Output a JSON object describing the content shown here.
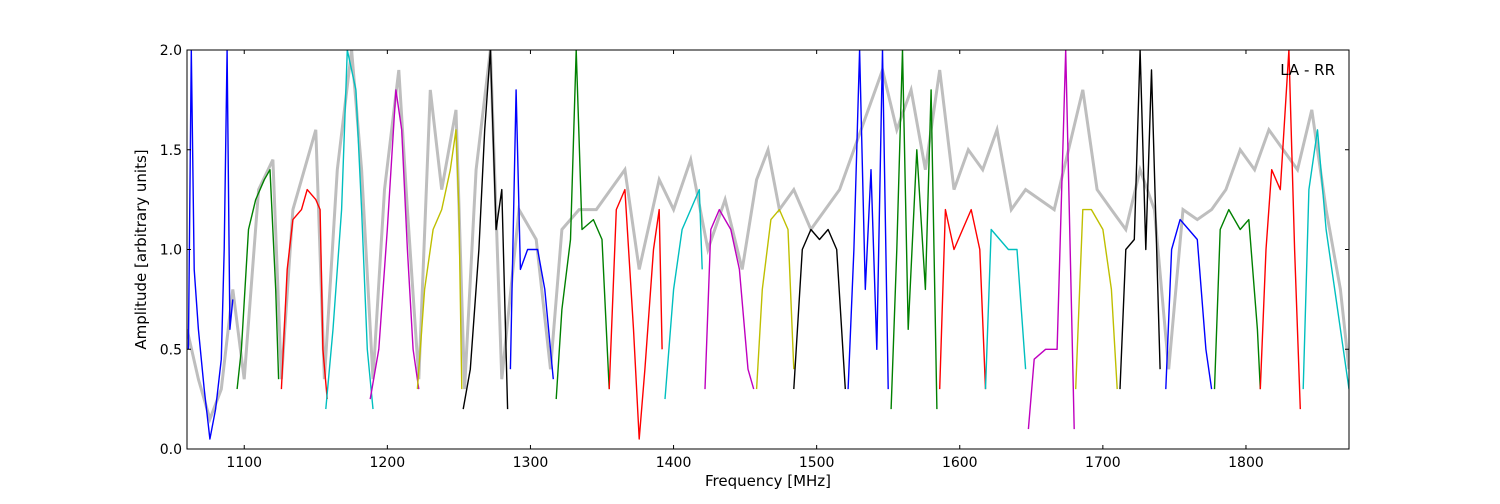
{
  "chart_data": {
    "type": "line",
    "title": "",
    "annotation": "LA - RR",
    "annotation_placement": "top-right",
    "xlabel": "Frequency [MHz]",
    "ylabel": "Amplitude [arbitrary units]",
    "xlim": [
      1060,
      1872
    ],
    "ylim": [
      0.0,
      2.0
    ],
    "xticks": [
      1100,
      1200,
      1300,
      1400,
      1500,
      1600,
      1700,
      1800
    ],
    "yticks": [
      0.0,
      0.5,
      1.0,
      1.5,
      2.0
    ],
    "xtick_labels": [
      "1100",
      "1200",
      "1300",
      "1400",
      "1500",
      "1600",
      "1700",
      "1800"
    ],
    "ytick_labels": [
      "0.0",
      "0.5",
      "1.0",
      "1.5",
      "2.0"
    ],
    "grid": false,
    "legend": "none",
    "background_series": {
      "color": "#bebebe",
      "points": [
        [
          1060,
          0.6
        ],
        [
          1068,
          0.35
        ],
        [
          1076,
          0.15
        ],
        [
          1084,
          0.3
        ],
        [
          1092,
          0.8
        ],
        [
          1100,
          0.35
        ],
        [
          1110,
          1.3
        ],
        [
          1120,
          1.45
        ],
        [
          1126,
          0.35
        ],
        [
          1134,
          1.2
        ],
        [
          1140,
          1.35
        ],
        [
          1150,
          1.6
        ],
        [
          1156,
          0.35
        ],
        [
          1165,
          1.4
        ],
        [
          1175,
          2.0
        ],
        [
          1182,
          1.4
        ],
        [
          1190,
          0.35
        ],
        [
          1198,
          1.3
        ],
        [
          1208,
          1.9
        ],
        [
          1214,
          1.2
        ],
        [
          1222,
          0.35
        ],
        [
          1230,
          1.8
        ],
        [
          1238,
          1.3
        ],
        [
          1248,
          1.7
        ],
        [
          1254,
          0.3
        ],
        [
          1262,
          1.4
        ],
        [
          1272,
          2.0
        ],
        [
          1280,
          0.35
        ],
        [
          1292,
          1.2
        ],
        [
          1304,
          1.05
        ],
        [
          1314,
          0.4
        ],
        [
          1322,
          1.1
        ],
        [
          1334,
          1.2
        ],
        [
          1346,
          1.2
        ],
        [
          1356,
          1.3
        ],
        [
          1366,
          1.4
        ],
        [
          1376,
          0.9
        ],
        [
          1390,
          1.35
        ],
        [
          1400,
          1.2
        ],
        [
          1412,
          1.45
        ],
        [
          1424,
          1.0
        ],
        [
          1436,
          1.25
        ],
        [
          1448,
          0.9
        ],
        [
          1458,
          1.35
        ],
        [
          1466,
          1.5
        ],
        [
          1474,
          1.2
        ],
        [
          1484,
          1.3
        ],
        [
          1496,
          1.1
        ],
        [
          1506,
          1.2
        ],
        [
          1516,
          1.3
        ],
        [
          1526,
          1.5
        ],
        [
          1536,
          1.7
        ],
        [
          1546,
          1.9
        ],
        [
          1556,
          1.6
        ],
        [
          1566,
          1.8
        ],
        [
          1576,
          1.4
        ],
        [
          1586,
          1.9
        ],
        [
          1596,
          1.3
        ],
        [
          1606,
          1.5
        ],
        [
          1616,
          1.4
        ],
        [
          1626,
          1.6
        ],
        [
          1636,
          1.2
        ],
        [
          1646,
          1.3
        ],
        [
          1656,
          1.25
        ],
        [
          1666,
          1.2
        ],
        [
          1676,
          1.5
        ],
        [
          1686,
          1.8
        ],
        [
          1696,
          1.3
        ],
        [
          1706,
          1.2
        ],
        [
          1716,
          1.1
        ],
        [
          1726,
          1.4
        ],
        [
          1736,
          1.2
        ],
        [
          1746,
          0.4
        ],
        [
          1756,
          1.2
        ],
        [
          1766,
          1.15
        ],
        [
          1776,
          1.2
        ],
        [
          1786,
          1.3
        ],
        [
          1796,
          1.5
        ],
        [
          1806,
          1.4
        ],
        [
          1816,
          1.6
        ],
        [
          1826,
          1.5
        ],
        [
          1836,
          1.4
        ],
        [
          1846,
          1.7
        ],
        [
          1856,
          1.2
        ],
        [
          1866,
          0.8
        ],
        [
          1872,
          0.4
        ]
      ]
    },
    "series": [
      {
        "color": "#0000ff",
        "points": [
          [
            1061,
            0.5
          ],
          [
            1063,
            2.0
          ],
          [
            1065,
            0.9
          ],
          [
            1068,
            0.6
          ],
          [
            1072,
            0.3
          ],
          [
            1076,
            0.05
          ],
          [
            1080,
            0.2
          ],
          [
            1084,
            0.45
          ],
          [
            1086,
            1.0
          ],
          [
            1088,
            2.0
          ],
          [
            1090,
            0.6
          ],
          [
            1092,
            0.75
          ]
        ]
      },
      {
        "color": "#008000",
        "points": [
          [
            1095,
            0.3
          ],
          [
            1098,
            0.5
          ],
          [
            1103,
            1.1
          ],
          [
            1108,
            1.25
          ],
          [
            1114,
            1.35
          ],
          [
            1118,
            1.4
          ],
          [
            1122,
            0.8
          ],
          [
            1124,
            0.35
          ]
        ]
      },
      {
        "color": "#ff0000",
        "points": [
          [
            1126,
            0.3
          ],
          [
            1130,
            0.9
          ],
          [
            1134,
            1.15
          ],
          [
            1140,
            1.2
          ],
          [
            1144,
            1.3
          ],
          [
            1150,
            1.25
          ],
          [
            1153,
            1.2
          ],
          [
            1155,
            0.5
          ],
          [
            1158,
            0.25
          ]
        ]
      },
      {
        "color": "#00bfbf",
        "points": [
          [
            1157,
            0.2
          ],
          [
            1162,
            0.6
          ],
          [
            1168,
            1.2
          ],
          [
            1172,
            2.0
          ],
          [
            1178,
            1.8
          ],
          [
            1182,
            1.2
          ],
          [
            1186,
            0.5
          ],
          [
            1190,
            0.2
          ]
        ]
      },
      {
        "color": "#bf00bf",
        "points": [
          [
            1188,
            0.25
          ],
          [
            1194,
            0.5
          ],
          [
            1200,
            1.1
          ],
          [
            1206,
            1.8
          ],
          [
            1210,
            1.6
          ],
          [
            1214,
            1.0
          ],
          [
            1218,
            0.5
          ],
          [
            1222,
            0.3
          ]
        ]
      },
      {
        "color": "#bfbf00",
        "points": [
          [
            1221,
            0.3
          ],
          [
            1226,
            0.8
          ],
          [
            1232,
            1.1
          ],
          [
            1238,
            1.2
          ],
          [
            1244,
            1.4
          ],
          [
            1248,
            1.6
          ],
          [
            1250,
            1.2
          ],
          [
            1252,
            0.3
          ]
        ]
      },
      {
        "color": "#000000",
        "points": [
          [
            1253,
            0.2
          ],
          [
            1258,
            0.4
          ],
          [
            1264,
            1.0
          ],
          [
            1268,
            1.6
          ],
          [
            1272,
            2.0
          ],
          [
            1276,
            1.1
          ],
          [
            1280,
            1.3
          ],
          [
            1284,
            0.2
          ]
        ]
      },
      {
        "color": "#0000ff",
        "points": [
          [
            1286,
            0.4
          ],
          [
            1290,
            1.8
          ],
          [
            1293,
            0.9
          ],
          [
            1298,
            1.0
          ],
          [
            1305,
            1.0
          ],
          [
            1310,
            0.8
          ],
          [
            1316,
            0.35
          ]
        ]
      },
      {
        "color": "#008000",
        "points": [
          [
            1318,
            0.25
          ],
          [
            1322,
            0.7
          ],
          [
            1328,
            1.05
          ],
          [
            1332,
            2.0
          ],
          [
            1336,
            1.1
          ],
          [
            1344,
            1.15
          ],
          [
            1350,
            1.05
          ],
          [
            1355,
            0.3
          ]
        ]
      },
      {
        "color": "#ff0000",
        "points": [
          [
            1355,
            0.3
          ],
          [
            1360,
            1.2
          ],
          [
            1366,
            1.3
          ],
          [
            1372,
            0.6
          ],
          [
            1376,
            0.05
          ],
          [
            1380,
            0.4
          ],
          [
            1386,
            1.0
          ],
          [
            1390,
            1.2
          ],
          [
            1392,
            0.5
          ]
        ]
      },
      {
        "color": "#00bfbf",
        "points": [
          [
            1394,
            0.25
          ],
          [
            1400,
            0.8
          ],
          [
            1406,
            1.1
          ],
          [
            1412,
            1.2
          ],
          [
            1418,
            1.3
          ],
          [
            1420,
            0.9
          ]
        ]
      },
      {
        "color": "#bf00bf",
        "points": [
          [
            1422,
            0.3
          ],
          [
            1426,
            1.1
          ],
          [
            1432,
            1.2
          ],
          [
            1440,
            1.1
          ],
          [
            1446,
            0.9
          ],
          [
            1452,
            0.4
          ],
          [
            1456,
            0.3
          ]
        ]
      },
      {
        "color": "#bfbf00",
        "points": [
          [
            1458,
            0.3
          ],
          [
            1462,
            0.8
          ],
          [
            1468,
            1.15
          ],
          [
            1474,
            1.2
          ],
          [
            1480,
            1.1
          ],
          [
            1484,
            0.4
          ]
        ]
      },
      {
        "color": "#000000",
        "points": [
          [
            1484,
            0.3
          ],
          [
            1490,
            1.0
          ],
          [
            1496,
            1.1
          ],
          [
            1502,
            1.05
          ],
          [
            1508,
            1.1
          ],
          [
            1514,
            1.0
          ],
          [
            1520,
            0.3
          ]
        ]
      },
      {
        "color": "#0000ff",
        "points": [
          [
            1522,
            0.3
          ],
          [
            1526,
            1.0
          ],
          [
            1530,
            2.0
          ],
          [
            1534,
            0.8
          ],
          [
            1538,
            1.4
          ],
          [
            1542,
            0.5
          ],
          [
            1546,
            2.0
          ],
          [
            1550,
            0.3
          ]
        ]
      },
      {
        "color": "#008000",
        "points": [
          [
            1552,
            0.2
          ],
          [
            1556,
            1.0
          ],
          [
            1560,
            2.0
          ],
          [
            1564,
            0.6
          ],
          [
            1570,
            1.5
          ],
          [
            1576,
            0.8
          ],
          [
            1580,
            1.8
          ],
          [
            1584,
            0.2
          ]
        ]
      },
      {
        "color": "#ff0000",
        "points": [
          [
            1586,
            0.3
          ],
          [
            1590,
            1.2
          ],
          [
            1596,
            1.0
          ],
          [
            1602,
            1.1
          ],
          [
            1608,
            1.2
          ],
          [
            1614,
            1.0
          ],
          [
            1618,
            0.3
          ]
        ]
      },
      {
        "color": "#00bfbf",
        "points": [
          [
            1618,
            0.3
          ],
          [
            1622,
            1.1
          ],
          [
            1628,
            1.05
          ],
          [
            1634,
            1.0
          ],
          [
            1640,
            1.0
          ],
          [
            1646,
            0.4
          ]
        ]
      },
      {
        "color": "#bf00bf",
        "points": [
          [
            1648,
            0.1
          ],
          [
            1652,
            0.45
          ],
          [
            1660,
            0.5
          ],
          [
            1668,
            0.5
          ],
          [
            1674,
            2.0
          ],
          [
            1680,
            0.1
          ]
        ]
      },
      {
        "color": "#bfbf00",
        "points": [
          [
            1681,
            0.3
          ],
          [
            1686,
            1.2
          ],
          [
            1692,
            1.2
          ],
          [
            1700,
            1.1
          ],
          [
            1706,
            0.8
          ],
          [
            1710,
            0.3
          ]
        ]
      },
      {
        "color": "#000000",
        "points": [
          [
            1712,
            0.3
          ],
          [
            1716,
            1.0
          ],
          [
            1722,
            1.05
          ],
          [
            1726,
            2.0
          ],
          [
            1730,
            1.0
          ],
          [
            1734,
            1.9
          ],
          [
            1740,
            0.4
          ]
        ]
      },
      {
        "color": "#0000ff",
        "points": [
          [
            1744,
            0.3
          ],
          [
            1748,
            1.0
          ],
          [
            1754,
            1.15
          ],
          [
            1760,
            1.1
          ],
          [
            1766,
            1.05
          ],
          [
            1772,
            0.5
          ],
          [
            1776,
            0.3
          ]
        ]
      },
      {
        "color": "#008000",
        "points": [
          [
            1778,
            0.3
          ],
          [
            1782,
            1.1
          ],
          [
            1788,
            1.2
          ],
          [
            1796,
            1.1
          ],
          [
            1802,
            1.15
          ],
          [
            1808,
            0.6
          ],
          [
            1810,
            0.3
          ]
        ]
      },
      {
        "color": "#ff0000",
        "points": [
          [
            1810,
            0.3
          ],
          [
            1814,
            1.0
          ],
          [
            1818,
            1.4
          ],
          [
            1824,
            1.3
          ],
          [
            1830,
            2.0
          ],
          [
            1834,
            1.0
          ],
          [
            1838,
            0.2
          ]
        ]
      },
      {
        "color": "#00bfbf",
        "points": [
          [
            1840,
            0.3
          ],
          [
            1844,
            1.3
          ],
          [
            1850,
            1.6
          ],
          [
            1856,
            1.1
          ],
          [
            1862,
            0.8
          ],
          [
            1868,
            0.5
          ],
          [
            1872,
            0.3
          ]
        ]
      }
    ]
  }
}
